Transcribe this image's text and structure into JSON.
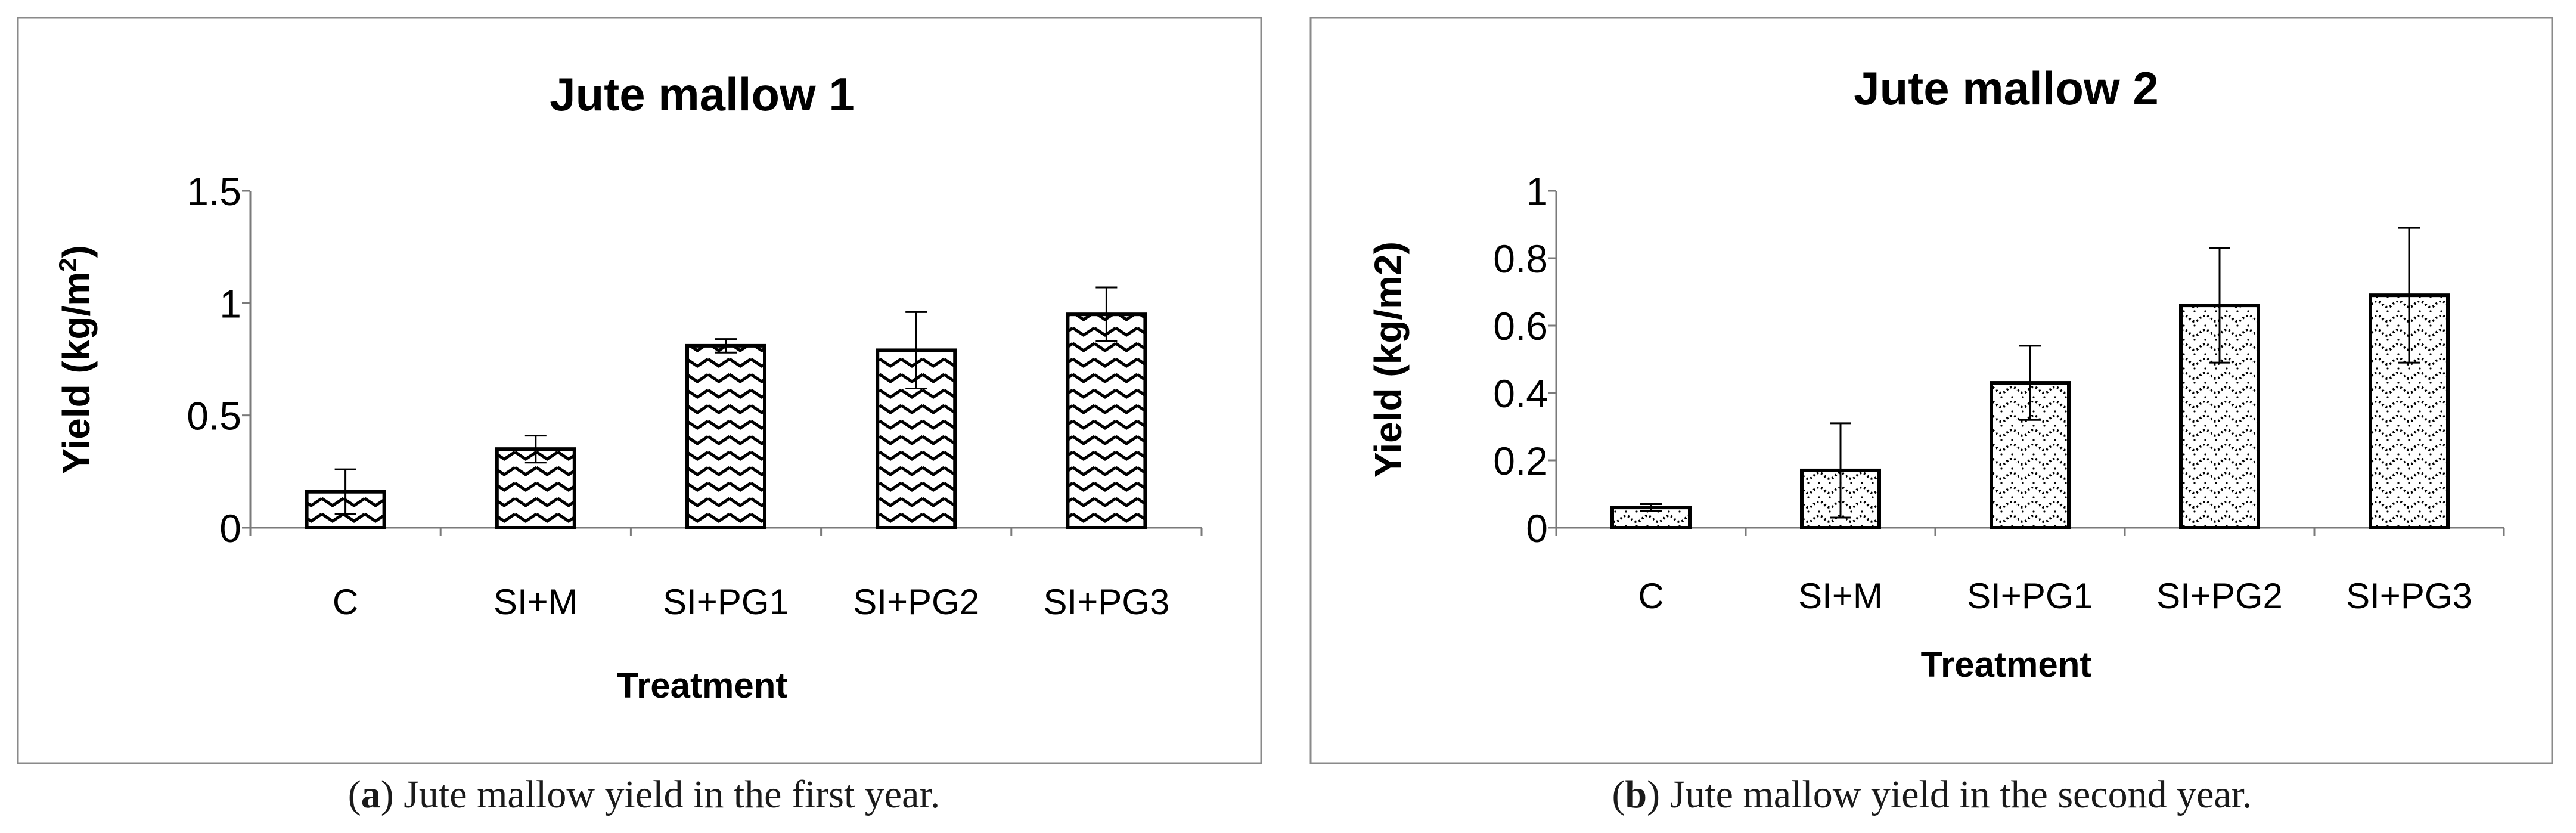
{
  "chart_data": [
    {
      "type": "bar",
      "title": "Jute mallow 1",
      "xlabel": "Treatment",
      "ylabel_main": "Yield (kg/m",
      "ylabel_sup": "2",
      "ylabel_close": ")",
      "categories": [
        "C",
        "SI+M",
        "SI+PG1",
        "SI+PG2",
        "SI+PG3"
      ],
      "values": [
        0.16,
        0.35,
        0.81,
        0.79,
        0.95
      ],
      "error": [
        0.1,
        0.06,
        0.03,
        0.17,
        0.12
      ],
      "ylim": [
        0,
        1.5
      ],
      "yticks": [
        0,
        0.5,
        1,
        1.5
      ],
      "ytick_labels": [
        "0",
        "0.5",
        "1",
        "1.5"
      ],
      "pattern": "zigzag",
      "grid": false,
      "legend": "none"
    },
    {
      "type": "bar",
      "title": "Jute mallow 2",
      "xlabel": "Treatment",
      "ylabel": "Yield (kg/m2)",
      "categories": [
        "C",
        "SI+M",
        "SI+PG1",
        "SI+PG2",
        "SI+PG3"
      ],
      "values": [
        0.06,
        0.17,
        0.43,
        0.66,
        0.69
      ],
      "error": [
        0.01,
        0.14,
        0.11,
        0.17,
        0.2
      ],
      "ylim": [
        0,
        1
      ],
      "yticks": [
        0,
        0.2,
        0.4,
        0.6,
        0.8,
        1
      ],
      "ytick_labels": [
        "0",
        "0.2",
        "0.4",
        "0.6",
        "0.8",
        "1"
      ],
      "pattern": "dotted-wave",
      "grid": false,
      "legend": "none"
    }
  ],
  "captions": [
    {
      "label": "a",
      "text": " Jute mallow yield in the first year."
    },
    {
      "label": "b",
      "text": " Jute mallow yield in the second year."
    }
  ],
  "colors": {
    "frame": "#8a8a8a",
    "axis": "#7a7a7a",
    "bar_stroke": "#000000",
    "text": "#000000"
  }
}
